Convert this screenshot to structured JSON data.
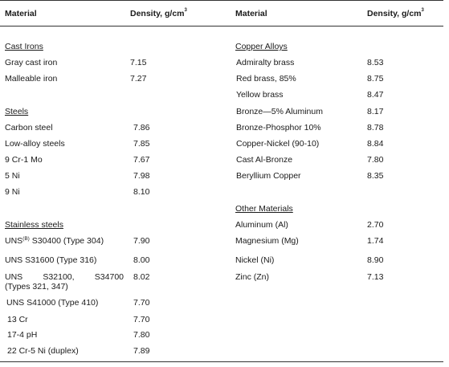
{
  "headers": {
    "material": "Material",
    "density_label": "Density, g/cm",
    "density_unit_sup": "3"
  },
  "left": {
    "cast_irons": {
      "title": "Cast Irons",
      "rows": [
        {
          "name": "Gray cast iron",
          "density": "7.15"
        },
        {
          "name": "Malleable iron",
          "density": "7.27"
        }
      ]
    },
    "steels": {
      "title": "Steels",
      "rows": [
        {
          "name": "Carbon steel",
          "density": "7.86"
        },
        {
          "name": "Low-alloy steels",
          "density": "7.85"
        },
        {
          "name": "9 Cr-1 Mo",
          "density": "7.67"
        },
        {
          "name": "5 Ni",
          "density": "7.98"
        },
        {
          "name": "9 Ni",
          "density": "8.10"
        }
      ]
    },
    "stainless": {
      "title": "Stainless steels",
      "row1_prefix": "UNS",
      "row1_sup": "(B)",
      "row1_rest": " S30400 (Type 304)",
      "row1_density": "7.90",
      "row2_name": "UNS S31600 (Type 316)",
      "row2_density": "8.00",
      "row3_a": "UNS",
      "row3_b": "S32100,",
      "row3_c": "S34700",
      "row3_d": "(Types 321, 347)",
      "row3_density": "8.02",
      "rows_rest": [
        {
          "name": "UNS S41000 (Type 410)",
          "density": "7.70"
        },
        {
          "name": "13 Cr",
          "density": "7.70"
        },
        {
          "name": "17-4 pH",
          "density": "7.80"
        },
        {
          "name": "22 Cr-5 Ni (duplex)",
          "density": "7.89"
        }
      ]
    }
  },
  "right": {
    "copper": {
      "title": "Copper Alloys",
      "rows": [
        {
          "name": "Admiralty brass",
          "density": "8.53"
        },
        {
          "name": "Red brass, 85%",
          "density": "8.75"
        },
        {
          "name": "Yellow brass",
          "density": "8.47"
        },
        {
          "name": "Bronze—5% Aluminum",
          "density": "8.17"
        },
        {
          "name": "Bronze-Phosphor 10%",
          "density": "8.78"
        },
        {
          "name": "Copper-Nickel (90-10)",
          "density": "8.84"
        },
        {
          "name": "Cast Al-Bronze",
          "density": "7.80"
        },
        {
          "name": "Beryllium Copper",
          "density": "8.35"
        }
      ]
    },
    "other": {
      "title": "Other Materials",
      "rows": [
        {
          "name": "Aluminum (Al)",
          "density": "2.70"
        },
        {
          "name": "Magnesium (Mg)",
          "density": "1.74"
        },
        {
          "name": "Nickel (Ni)",
          "density": "8.90"
        },
        {
          "name": "Zinc (Zn)",
          "density": "7.13"
        }
      ]
    }
  }
}
